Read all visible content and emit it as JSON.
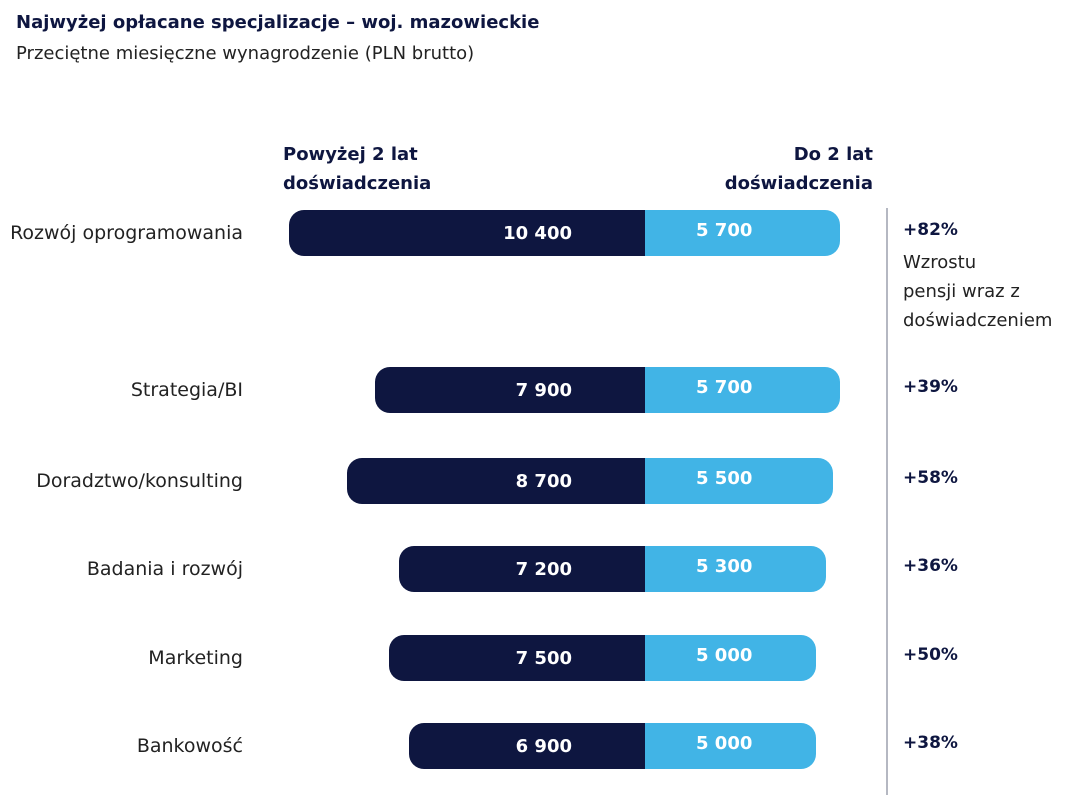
{
  "chart_data": {
    "type": "diverging_bar",
    "title": "Najwyżej opłacane specjalizacje – woj. mazowieckie",
    "subtitle": "Przeciętne miesięczne wynagrodzenie (PLN brutto)",
    "categories": [
      "Rozwój oprogramowania",
      "Strategia/BI",
      "Doradztwo/konsulting",
      "Badania i rozwój",
      "Marketing",
      "Bankowość"
    ],
    "series": [
      {
        "name": "Powyżej 2 lat\ndoświadczenia",
        "color": "#0e1640",
        "values": [
          10400,
          7900,
          8700,
          7200,
          7500,
          6900
        ],
        "value_labels": [
          "10 400",
          "7 900",
          "8 700",
          "7 200",
          "7 500",
          "6 900"
        ]
      },
      {
        "name": "Do 2 lat\ndoświadczenia",
        "color": "#41b4e6",
        "values": [
          5700,
          5700,
          5500,
          5300,
          5000,
          5000
        ],
        "value_labels": [
          "5 700",
          "5 700",
          "5 500",
          "5 300",
          "5 000",
          "5 000"
        ]
      }
    ],
    "growth_labels": [
      "+82%",
      "+39%",
      "+58%",
      "+36%",
      "+50%",
      "+38%"
    ],
    "growth_annotation": "Wzrostu\npensji wraz z\ndoświadczeniem"
  }
}
